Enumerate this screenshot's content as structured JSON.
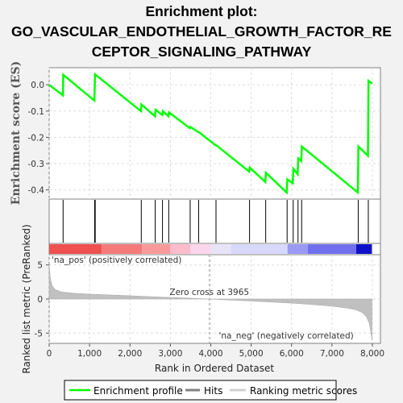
{
  "title": {
    "line1": "Enrichment plot:",
    "line2": "GO_VASCULAR_ENDOTHELIAL_GROWTH_FACTOR_RE",
    "line3": "CEPTOR_SIGNALING_PATHWAY"
  },
  "colors": {
    "enrichment_line": "#00ff00",
    "hits": "#000000",
    "metric_fill": "#c0c0c0",
    "pos_label": "#ff0000",
    "neg_label": "#0000ff",
    "zero_line": "#999999"
  },
  "chart_data": [
    {
      "type": "line",
      "name": "enrichment-profile",
      "ylabel": "Enrichment score (ES)",
      "xlim": [
        0,
        8200
      ],
      "ylim": [
        -0.435,
        0.065
      ],
      "yticks": [
        0.0,
        -0.1,
        -0.2,
        -0.3,
        -0.4
      ],
      "ytick_labels": [
        "0.0",
        "-0.1",
        "-0.2",
        "-0.3",
        "-0.4"
      ],
      "grid": true,
      "x": [
        0,
        340,
        350,
        1120,
        1135,
        2270,
        2285,
        2620,
        2635,
        2800,
        2815,
        2950,
        2965,
        3480,
        3495,
        3690,
        3705,
        4120,
        4135,
        4950,
        4965,
        5350,
        5365,
        5880,
        5895,
        6030,
        6045,
        6150,
        6165,
        6240,
        6255,
        7640,
        7655,
        7890,
        7905,
        7990
      ],
      "y": [
        0.0,
        -0.04,
        0.038,
        -0.06,
        0.04,
        -0.1,
        -0.075,
        -0.12,
        -0.095,
        -0.115,
        -0.1,
        -0.12,
        -0.105,
        -0.165,
        -0.16,
        -0.18,
        -0.18,
        -0.23,
        -0.23,
        -0.33,
        -0.315,
        -0.37,
        -0.335,
        -0.41,
        -0.36,
        -0.375,
        -0.32,
        -0.34,
        -0.28,
        -0.29,
        -0.235,
        -0.41,
        -0.235,
        -0.27,
        0.015,
        0.005
      ]
    },
    {
      "type": "hits",
      "name": "hits",
      "hits": [
        345,
        1125,
        1140,
        2280,
        2625,
        2805,
        2960,
        3490,
        3700,
        4130,
        4960,
        5360,
        5890,
        6040,
        6160,
        6250,
        7650,
        7900
      ]
    },
    {
      "type": "area",
      "name": "ranking-metric",
      "xlabel": "Rank in Ordered Dataset",
      "ylabel": "Ranked list metric (PreRanked)",
      "xlim": [
        0,
        8200
      ],
      "ylim": [
        -6.5,
        6.5
      ],
      "xticks": [
        0,
        1000,
        2000,
        3000,
        4000,
        5000,
        6000,
        7000,
        8000
      ],
      "xtick_labels": [
        "0",
        "1,000",
        "2,000",
        "3,000",
        "4,000",
        "5,000",
        "6,000",
        "7,000",
        "8,000"
      ],
      "yticks": [
        5,
        0,
        -5
      ],
      "ytick_labels": [
        "5",
        "0",
        "-5"
      ],
      "x": [
        0,
        30,
        80,
        150,
        300,
        600,
        1000,
        1500,
        2000,
        2500,
        3000,
        3500,
        3965,
        4500,
        5000,
        5500,
        6000,
        6500,
        7000,
        7400,
        7600,
        7750,
        7850,
        7920,
        7960,
        7990
      ],
      "y": [
        5.2,
        3.0,
        1.9,
        1.4,
        1.05,
        0.85,
        0.72,
        0.6,
        0.48,
        0.36,
        0.24,
        0.12,
        0.0,
        -0.15,
        -0.3,
        -0.45,
        -0.6,
        -0.8,
        -1.05,
        -1.35,
        -1.6,
        -2.0,
        -2.6,
        -3.5,
        -4.8,
        -6.1
      ],
      "zero_cross_label": "Zero cross at 3965",
      "pos_label": "'na_pos' (positively correlated)",
      "neg_label": "'na_neg' (negatively correlated)"
    }
  ],
  "legend": {
    "items": [
      {
        "label": "Enrichment profile"
      },
      {
        "label": "Hits"
      },
      {
        "label": "Ranking metric scores"
      }
    ]
  }
}
